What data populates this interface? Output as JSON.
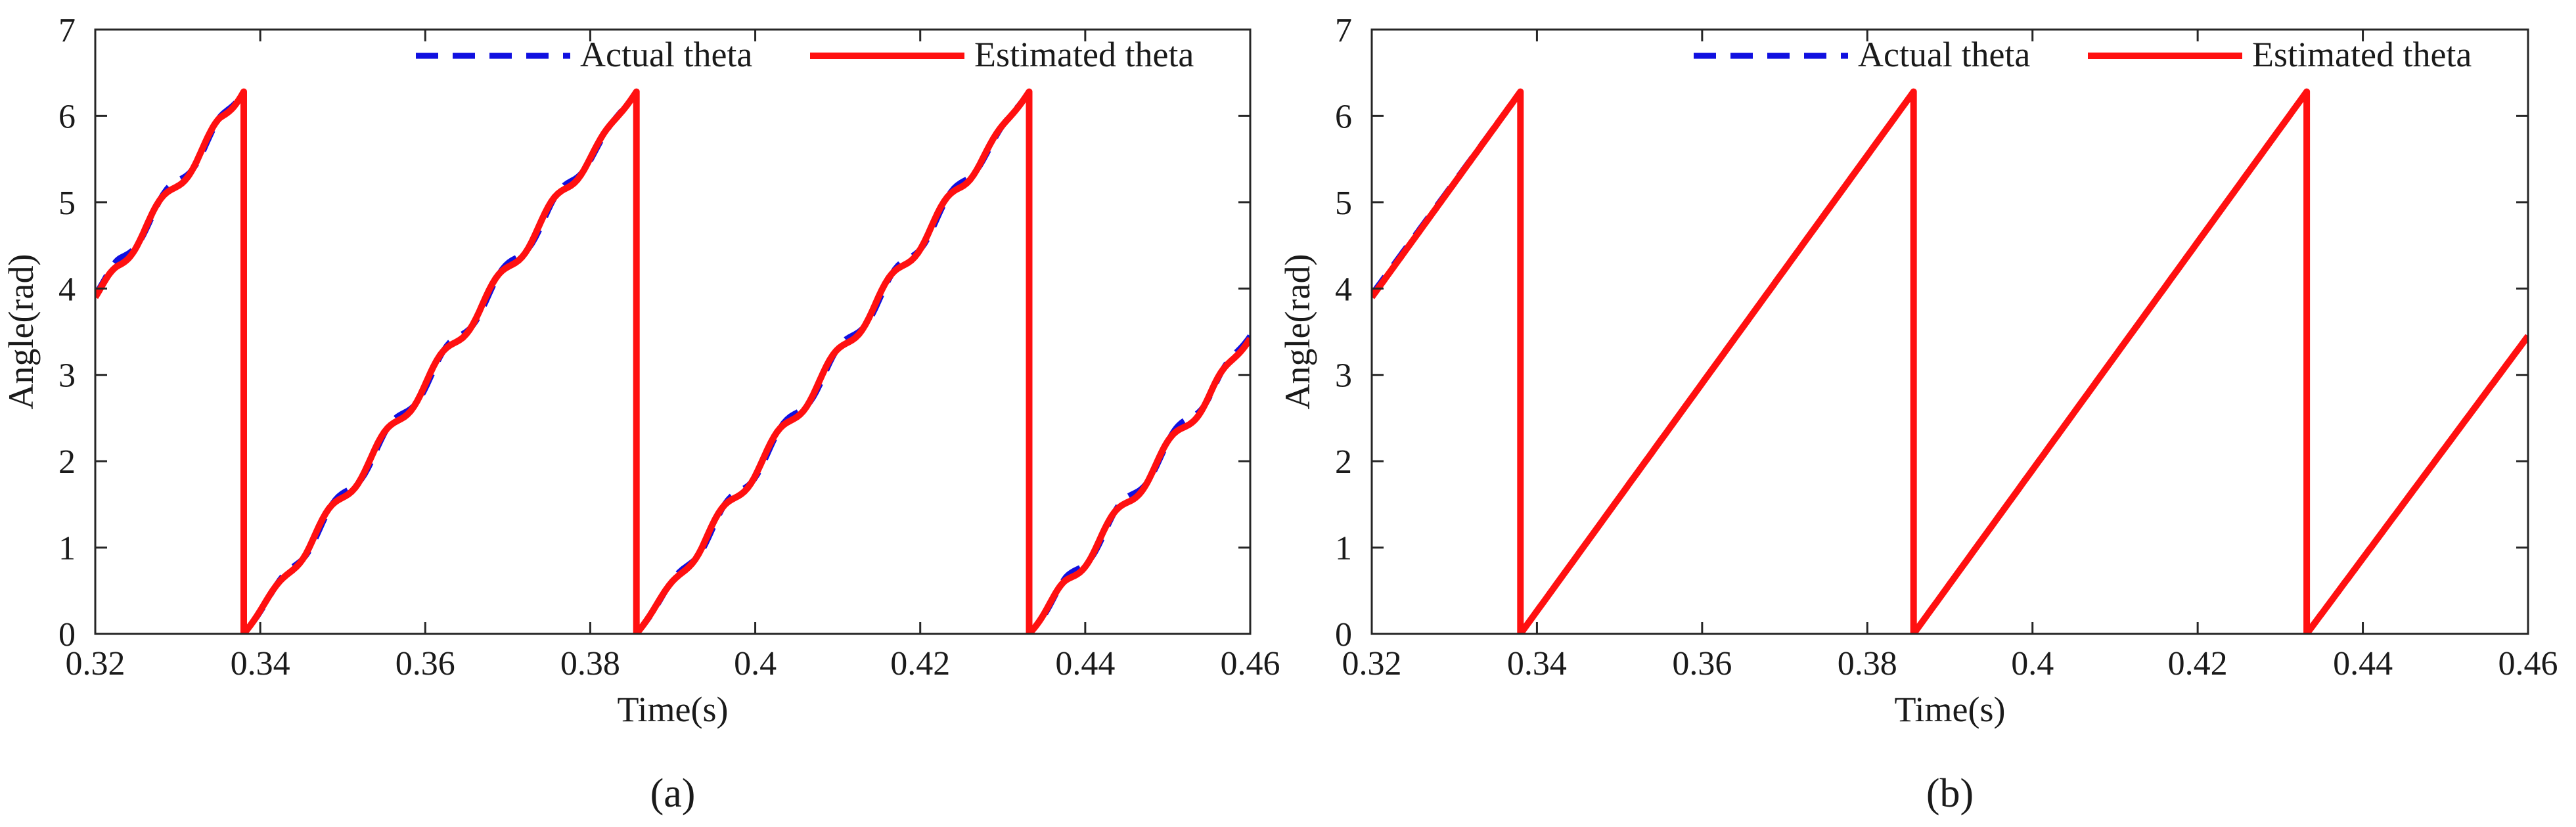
{
  "chart_data": [
    {
      "type": "line",
      "panel_label": "(a)",
      "xlabel": "Time(s)",
      "ylabel": "Angle(rad)",
      "xlim": [
        0.32,
        0.46
      ],
      "ylim": [
        0,
        7
      ],
      "xticks": [
        "0.32",
        "0.34",
        "0.36",
        "0.38",
        "0.4",
        "0.42",
        "0.44",
        "0.46"
      ],
      "yticks": [
        "0",
        "1",
        "2",
        "3",
        "4",
        "5",
        "6",
        "7"
      ],
      "legend_position": "top-right",
      "period": 0.0476,
      "ripple_amplitude": 0.09,
      "series": [
        {
          "name": "Actual theta",
          "color": "#1010e0",
          "style": "dashed",
          "x": [
            0.32,
            0.338,
            0.338,
            0.3856,
            0.3856,
            0.4332,
            0.4332,
            0.46
          ],
          "y": [
            3.93,
            6.28,
            0,
            6.28,
            0,
            6.28,
            0,
            3.45
          ]
        },
        {
          "name": "Estimated theta",
          "color": "#ff1010",
          "style": "solid",
          "x": [
            0.32,
            0.338,
            0.338,
            0.3856,
            0.3856,
            0.4332,
            0.4332,
            0.46
          ],
          "y": [
            3.9,
            6.28,
            0,
            6.28,
            0,
            6.28,
            0,
            3.42
          ]
        }
      ]
    },
    {
      "type": "line",
      "panel_label": "(b)",
      "xlabel": "Time(s)",
      "ylabel": "Angle(rad)",
      "xlim": [
        0.32,
        0.46
      ],
      "ylim": [
        0,
        7
      ],
      "xticks": [
        "0.32",
        "0.34",
        "0.36",
        "0.38",
        "0.4",
        "0.42",
        "0.44",
        "0.46"
      ],
      "yticks": [
        "0",
        "1",
        "2",
        "3",
        "4",
        "5",
        "6",
        "7"
      ],
      "legend_position": "top-right",
      "period": 0.0476,
      "ripple_amplitude": 0,
      "series": [
        {
          "name": "Actual theta",
          "color": "#1010e0",
          "style": "dashed",
          "x": [
            0.32,
            0.338,
            0.338,
            0.3856,
            0.3856,
            0.4332,
            0.4332,
            0.46
          ],
          "y": [
            3.93,
            6.28,
            0,
            6.28,
            0,
            6.28,
            0,
            3.45
          ]
        },
        {
          "name": "Estimated theta",
          "color": "#ff1010",
          "style": "solid",
          "x": [
            0.32,
            0.338,
            0.338,
            0.3856,
            0.3856,
            0.4332,
            0.4332,
            0.46
          ],
          "y": [
            3.9,
            6.28,
            0,
            6.28,
            0,
            6.28,
            0,
            3.45
          ]
        }
      ]
    }
  ]
}
